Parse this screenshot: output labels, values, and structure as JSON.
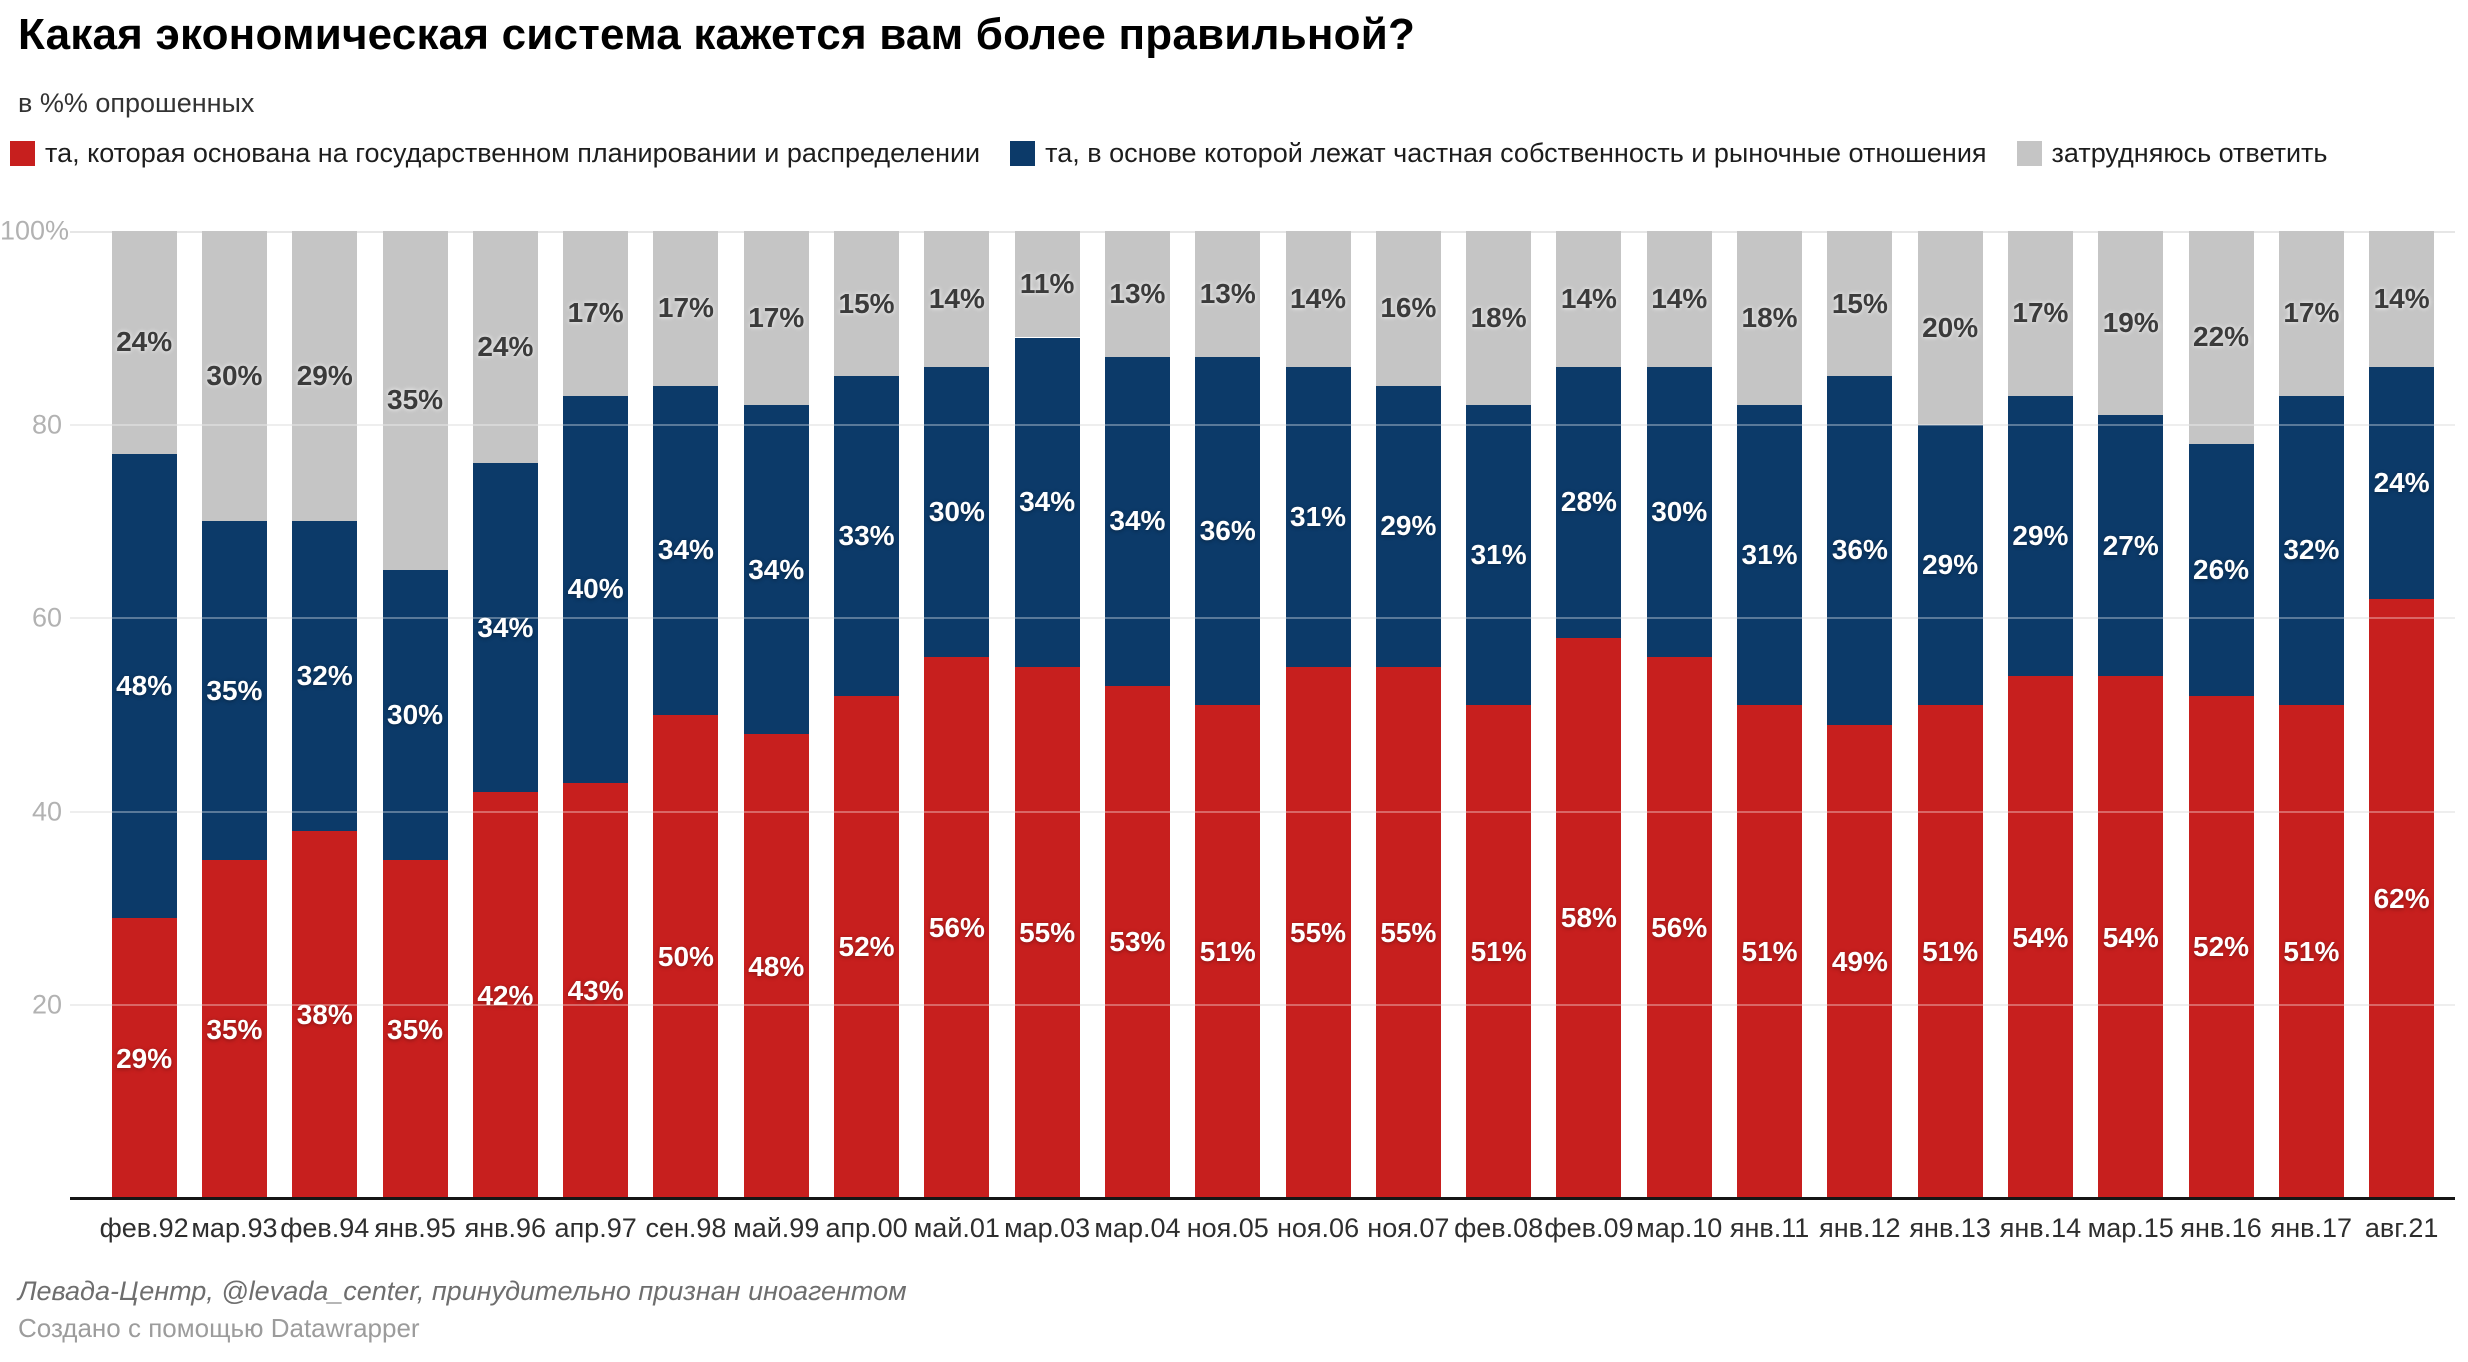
{
  "header": {
    "title": "Какая экономическая система кажется вам более правильной?",
    "subtitle": "в %% опрошенных"
  },
  "footer": {
    "source": "Левада-Центр, @levada_center, принудительно признан иноагентом",
    "credit": "Создано с помощью Datawrapper"
  },
  "colors": {
    "planned": "#c71f1e",
    "market": "#0c3a69",
    "undecided": "#c5c5c5",
    "axis_line": "#161616",
    "gridline": "#e6e6e6",
    "y_tick_text": "#b2b2b2",
    "x_tick_text": "#2e2e2e"
  },
  "chart_data": {
    "type": "bar",
    "stacked": true,
    "grid": true,
    "legend_position": "top",
    "ylim": [
      0,
      100
    ],
    "xlabel": "",
    "ylabel": "",
    "y_ticks": [
      {
        "value": 100,
        "label": "100%"
      },
      {
        "value": 80,
        "label": "80"
      },
      {
        "value": 60,
        "label": "60"
      },
      {
        "value": 40,
        "label": "40"
      },
      {
        "value": 20,
        "label": "20"
      }
    ],
    "categories": [
      "фев.92",
      "мар.93",
      "фев.94",
      "янв.95",
      "янв.96",
      "апр.97",
      "сен.98",
      "май.99",
      "апр.00",
      "май.01",
      "мар.03",
      "мар.04",
      "ноя.05",
      "ноя.06",
      "ноя.07",
      "фев.08",
      "фев.09",
      "мар.10",
      "янв.11",
      "янв.12",
      "янв.13",
      "янв.14",
      "мар.15",
      "янв.16",
      "янв.17",
      "авг.21"
    ],
    "series": [
      {
        "key": "planned",
        "name": "та, которая основана на государственном планировании и распределении",
        "color": "#c71f1e",
        "label_style": "light",
        "values": [
          29,
          35,
          38,
          35,
          42,
          43,
          50,
          48,
          52,
          56,
          55,
          53,
          51,
          55,
          55,
          51,
          58,
          56,
          51,
          49,
          51,
          54,
          54,
          52,
          51,
          62
        ]
      },
      {
        "key": "market",
        "name": "та, в основе которой лежат частная собственность и рыночные отношения",
        "color": "#0c3a69",
        "label_style": "light",
        "values": [
          48,
          35,
          32,
          30,
          34,
          40,
          34,
          34,
          33,
          30,
          34,
          34,
          36,
          31,
          29,
          31,
          28,
          30,
          31,
          36,
          29,
          29,
          27,
          26,
          32,
          24
        ]
      },
      {
        "key": "undecided",
        "name": "затрудняюсь ответить",
        "color": "#c5c5c5",
        "label_style": "dark",
        "values": [
          24,
          30,
          29,
          35,
          24,
          17,
          17,
          17,
          15,
          14,
          11,
          13,
          13,
          14,
          16,
          18,
          14,
          14,
          18,
          15,
          20,
          17,
          19,
          22,
          17,
          14
        ]
      }
    ]
  }
}
